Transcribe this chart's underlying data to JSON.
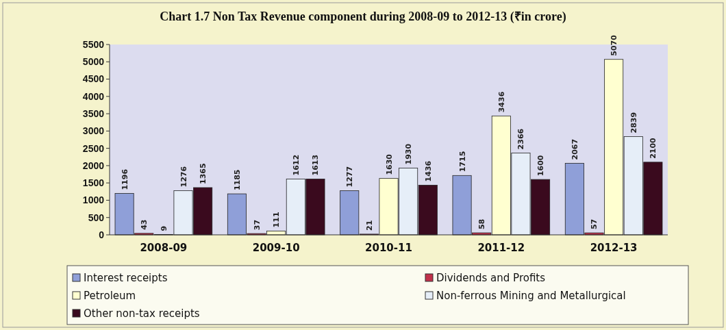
{
  "chart_data": {
    "type": "bar",
    "title": "Chart 1.7 Non Tax Revenue component during 2008-09 to 2012-13 (₹in crore)",
    "categories": [
      "2008-09",
      "2009-10",
      "2010-11",
      "2011-12",
      "2012-13"
    ],
    "series": [
      {
        "name": "Interest receipts",
        "color": "#8f9fd8",
        "values": [
          1196,
          1185,
          1277,
          1715,
          2067
        ]
      },
      {
        "name": "Dividends and Profits",
        "color": "#c0304a",
        "values": [
          43,
          37,
          21,
          58,
          57
        ]
      },
      {
        "name": "Petroleum",
        "color": "#ffffd0",
        "values": [
          9,
          111,
          1630,
          3436,
          5070
        ]
      },
      {
        "name": "Non-ferrous Mining and Metallurgical",
        "color": "#e6eef8",
        "values": [
          1276,
          1612,
          1930,
          2366,
          2839
        ]
      },
      {
        "name": "Other non-tax receipts",
        "color": "#3a0a1e",
        "values": [
          1365,
          1613,
          1436,
          1600,
          2100
        ]
      }
    ],
    "ylim": [
      0,
      5500
    ],
    "yticks": [
      0,
      500,
      1000,
      1500,
      2000,
      2500,
      3000,
      3500,
      4000,
      4500,
      5000,
      5500
    ],
    "data_labels": true,
    "legend": "bottom",
    "grid": false
  }
}
